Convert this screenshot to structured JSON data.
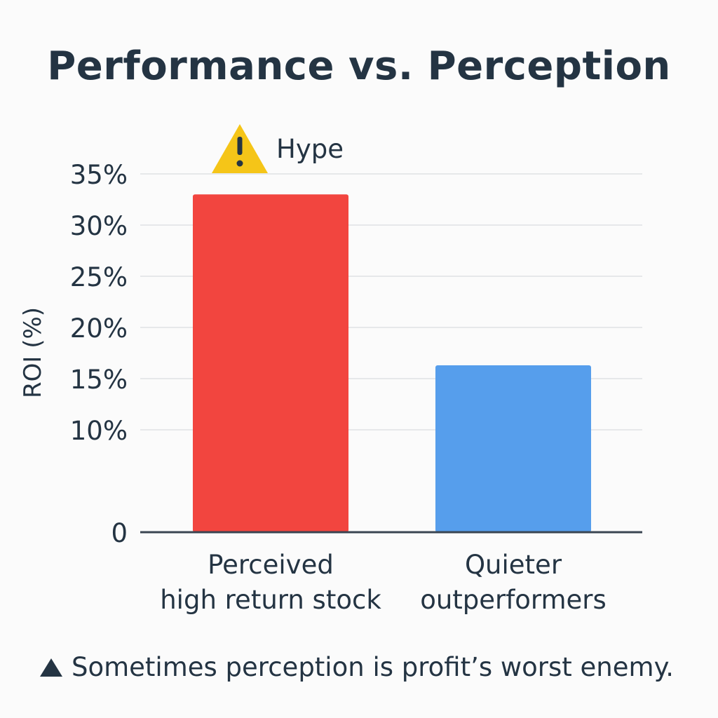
{
  "title": "Performance vs. Perception",
  "footnote": {
    "icon": "triangle-icon",
    "text": "Sometimes perception is profit’s worst enemy."
  },
  "colors": {
    "grid": "#e6e8ea",
    "axis": "#3a4552",
    "text": "#243443",
    "warning": "#f5c518"
  },
  "chart_data": {
    "type": "bar",
    "categories": [
      "Perceived\nhigh return stock",
      "Quieter\noutperformers"
    ],
    "values": [
      33,
      16.3
    ],
    "colors": [
      "#f2453f",
      "#569eec"
    ],
    "ylabel": "ROI (%)",
    "xlabel": "",
    "ylim": [
      0,
      35
    ],
    "yticks": [
      0,
      10,
      15,
      20,
      25,
      30,
      35
    ],
    "ytick_labels": [
      "0",
      "10%",
      "15%",
      "20%",
      "25%",
      "30%",
      "35%"
    ],
    "grid": true,
    "annotation": {
      "text": "Hype",
      "icon": "warning-icon",
      "category_index": 0
    }
  }
}
